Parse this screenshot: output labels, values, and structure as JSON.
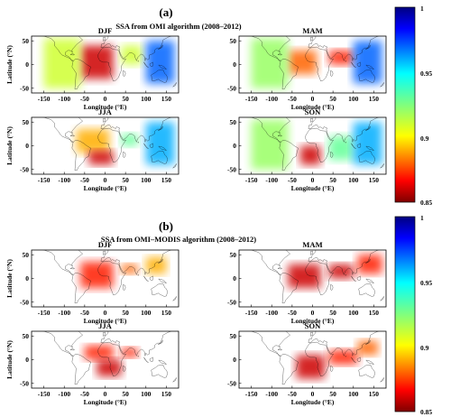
{
  "chart_data": [
    {
      "type": "heatmap",
      "panel_label": "(a)",
      "title": "SSA from OMI  algorithm (2008–2012)",
      "colorbar": {
        "ticks": [
          1,
          0.95,
          0.9,
          0.85
        ],
        "range": [
          0.85,
          1
        ],
        "colormap": "jet-reversed"
      },
      "maps": [
        {
          "season": "DJF",
          "xlabel": "Longitude (°E)",
          "ylabel": "Latitude (°N)",
          "xlim": [
            -180,
            180
          ],
          "ylim": [
            -60,
            60
          ],
          "xticks": [
            -150,
            -100,
            -50,
            0,
            50,
            100,
            150
          ],
          "yticks": [
            50,
            0,
            -50
          ],
          "regions": [
            {
              "lon": [
                -60,
                20
              ],
              "lat": [
                -30,
                40
              ],
              "ssa": 0.86
            },
            {
              "lon": [
                -150,
                -60
              ],
              "lat": [
                -50,
                55
              ],
              "ssa": 0.91
            },
            {
              "lon": [
                40,
                90
              ],
              "lat": [
                0,
                40
              ],
              "ssa": 0.91
            },
            {
              "lon": [
                100,
                170
              ],
              "lat": [
                -40,
                50
              ],
              "ssa": 0.97
            }
          ]
        },
        {
          "season": "MAM",
          "xlabel": "Longitude (°E)",
          "ylabel": "",
          "xlim": [
            -180,
            180
          ],
          "ylim": [
            -60,
            60
          ],
          "xticks": [
            -150,
            -100,
            -50,
            0,
            50,
            100,
            150
          ],
          "yticks": [
            50,
            0,
            -50
          ],
          "regions": [
            {
              "lon": [
                -60,
                10
              ],
              "lat": [
                -20,
                30
              ],
              "ssa": 0.88
            },
            {
              "lon": [
                -150,
                -60
              ],
              "lat": [
                -50,
                55
              ],
              "ssa": 0.92
            },
            {
              "lon": [
                40,
                100
              ],
              "lat": [
                0,
                30
              ],
              "ssa": 0.87
            },
            {
              "lon": [
                100,
                170
              ],
              "lat": [
                -40,
                50
              ],
              "ssa": 0.97
            }
          ]
        },
        {
          "season": "JJA",
          "xlabel": "Longitude (°E)",
          "ylabel": "Latitude (°N)",
          "xlim": [
            -180,
            180
          ],
          "ylim": [
            -60,
            60
          ],
          "xticks": [
            -150,
            -100,
            -50,
            0,
            50,
            100,
            150
          ],
          "yticks": [
            50,
            0,
            -50
          ],
          "regions": [
            {
              "lon": [
                -70,
                10
              ],
              "lat": [
                -15,
                35
              ],
              "ssa": 0.89
            },
            {
              "lon": [
                -40,
                20
              ],
              "lat": [
                -40,
                -10
              ],
              "ssa": 0.86
            },
            {
              "lon": [
                40,
                80
              ],
              "lat": [
                0,
                25
              ],
              "ssa": 0.93
            },
            {
              "lon": [
                100,
                170
              ],
              "lat": [
                -40,
                50
              ],
              "ssa": 0.96
            }
          ]
        },
        {
          "season": "SON",
          "xlabel": "Longitude (°E)",
          "ylabel": "",
          "xlim": [
            -180,
            180
          ],
          "ylim": [
            -60,
            60
          ],
          "xticks": [
            -150,
            -100,
            -50,
            0,
            50,
            100,
            150
          ],
          "yticks": [
            50,
            0,
            -50
          ],
          "regions": [
            {
              "lon": [
                -30,
                20
              ],
              "lat": [
                -40,
                0
              ],
              "ssa": 0.86
            },
            {
              "lon": [
                -150,
                -60
              ],
              "lat": [
                -50,
                55
              ],
              "ssa": 0.92
            },
            {
              "lon": [
                40,
                100
              ],
              "lat": [
                -30,
                20
              ],
              "ssa": 0.93
            },
            {
              "lon": [
                100,
                170
              ],
              "lat": [
                -40,
                50
              ],
              "ssa": 0.96
            }
          ]
        }
      ]
    },
    {
      "type": "heatmap",
      "panel_label": "(b)",
      "title": "SSA from OMI–MODIS algorithm (2008–2012)",
      "colorbar": {
        "ticks": [
          1,
          0.95,
          0.9,
          0.85
        ],
        "range": [
          0.85,
          1
        ],
        "colormap": "jet-reversed"
      },
      "maps": [
        {
          "season": "DJF",
          "xlabel": "Longitude (°E)",
          "ylabel": "Latitude (°N)",
          "xlim": [
            -180,
            180
          ],
          "ylim": [
            -60,
            60
          ],
          "xticks": [
            -150,
            -100,
            -50,
            0,
            50,
            100,
            150
          ],
          "yticks": [
            50,
            0,
            -50
          ],
          "regions": [
            {
              "lon": [
                -60,
                20
              ],
              "lat": [
                -20,
                35
              ],
              "ssa": 0.87
            },
            {
              "lon": [
                40,
                80
              ],
              "lat": [
                10,
                30
              ],
              "ssa": 0.88
            },
            {
              "lon": [
                100,
                150
              ],
              "lat": [
                10,
                45
              ],
              "ssa": 0.89
            }
          ]
        },
        {
          "season": "MAM",
          "xlabel": "Longitude (°E)",
          "ylabel": "",
          "xlim": [
            -180,
            180
          ],
          "ylim": [
            -60,
            60
          ],
          "xticks": [
            -150,
            -100,
            -50,
            0,
            50,
            100,
            150
          ],
          "yticks": [
            50,
            0,
            -50
          ],
          "regions": [
            {
              "lon": [
                -60,
                20
              ],
              "lat": [
                -20,
                30
              ],
              "ssa": 0.86
            },
            {
              "lon": [
                40,
                100
              ],
              "lat": [
                0,
                30
              ],
              "ssa": 0.86
            },
            {
              "lon": [
                110,
                170
              ],
              "lat": [
                10,
                50
              ],
              "ssa": 0.87
            }
          ]
        },
        {
          "season": "JJA",
          "xlabel": "Longitude (°E)",
          "ylabel": "Latitude (°N)",
          "xlim": [
            -180,
            180
          ],
          "ylim": [
            -60,
            60
          ],
          "xticks": [
            -150,
            -100,
            -50,
            0,
            50,
            100,
            150
          ],
          "yticks": [
            50,
            0,
            -50
          ],
          "regions": [
            {
              "lon": [
                -50,
                20
              ],
              "lat": [
                0,
                30
              ],
              "ssa": 0.87
            },
            {
              "lon": [
                -20,
                40
              ],
              "lat": [
                -35,
                0
              ],
              "ssa": 0.86
            },
            {
              "lon": [
                40,
                80
              ],
              "lat": [
                5,
                25
              ],
              "ssa": 0.87
            }
          ]
        },
        {
          "season": "SON",
          "xlabel": "Longitude (°E)",
          "ylabel": "",
          "xlim": [
            -180,
            180
          ],
          "ylim": [
            -60,
            60
          ],
          "xticks": [
            -150,
            -100,
            -50,
            0,
            50,
            100,
            150
          ],
          "yticks": [
            50,
            0,
            -50
          ],
          "regions": [
            {
              "lon": [
                -40,
                30
              ],
              "lat": [
                -40,
                10
              ],
              "ssa": 0.86
            },
            {
              "lon": [
                40,
                110
              ],
              "lat": [
                -10,
                20
              ],
              "ssa": 0.87
            },
            {
              "lon": [
                110,
                160
              ],
              "lat": [
                10,
                40
              ],
              "ssa": 0.88
            }
          ]
        }
      ]
    }
  ]
}
